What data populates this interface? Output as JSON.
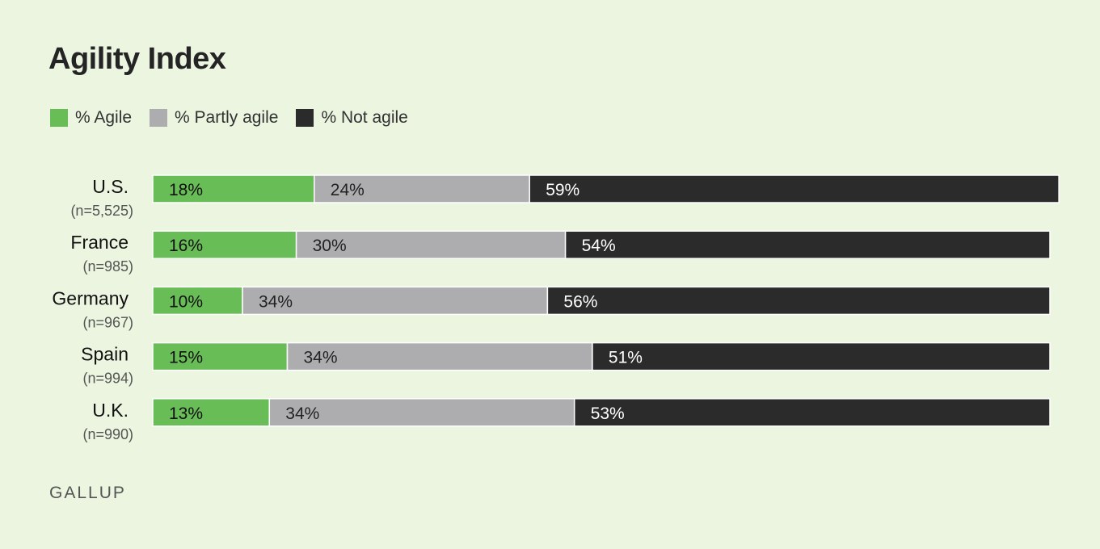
{
  "header": {
    "title": "Agility Index"
  },
  "footer": {
    "brand": "GALLUP"
  },
  "colors": {
    "agile": "#68bd57",
    "partly": "#adadb0",
    "not": "#2b2b2b",
    "background": "#ebf5e0"
  },
  "chart_data": {
    "type": "bar",
    "orientation": "horizontal",
    "stacked": true,
    "title": "Agility Index",
    "legend_position": "top-left",
    "categories": [
      "U.S.",
      "France",
      "Germany",
      "Spain",
      "U.K."
    ],
    "sample_sizes": [
      "(n=5,525)",
      "(n=985)",
      "(n=967)",
      "(n=994)",
      "(n=990)"
    ],
    "series": [
      {
        "name": "% Agile",
        "color": "#68bd57",
        "values": [
          18,
          16,
          10,
          15,
          13
        ]
      },
      {
        "name": "% Partly agile",
        "color": "#adadb0",
        "values": [
          24,
          30,
          34,
          34,
          34
        ]
      },
      {
        "name": "% Not agile",
        "color": "#2b2b2b",
        "values": [
          59,
          54,
          56,
          51,
          53
        ]
      }
    ],
    "value_suffix": "%"
  }
}
